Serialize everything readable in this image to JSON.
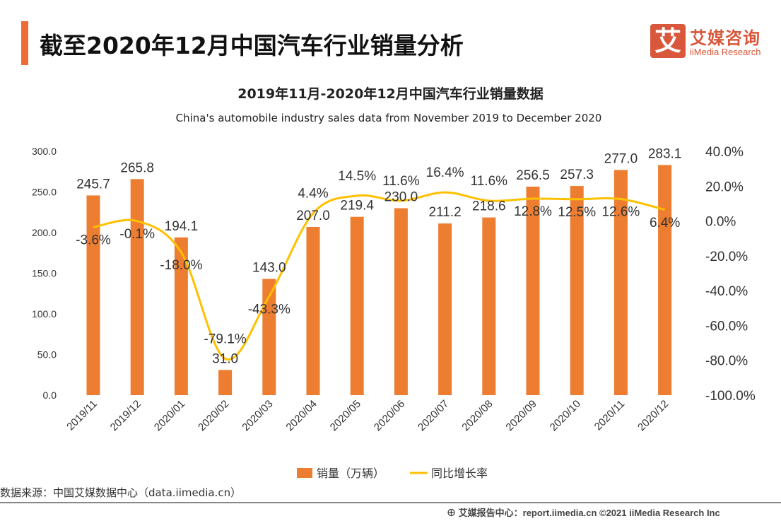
{
  "header": {
    "title": "截至2020年12月中国汽车行业销量分析",
    "logo_cn": "艾媒咨询",
    "logo_en": "iiMedia Research",
    "logo_mark": "艾"
  },
  "chart_data": {
    "type": "bar+line",
    "title": "2019年11月-2020年12月中国汽车行业销量数据",
    "subtitle": "China's automobile industry sales data from November 2019 to December 2020",
    "categories": [
      "2019/11",
      "2019/12",
      "2020/01",
      "2020/02",
      "2020/03",
      "2020/04",
      "2020/05",
      "2020/06",
      "2020/07",
      "2020/08",
      "2020/09",
      "2020/10",
      "2020/11",
      "2020/12"
    ],
    "series": [
      {
        "name": "销量（万辆）",
        "type": "bar",
        "axis": "left",
        "color": "#ed7d31",
        "values": [
          245.7,
          265.8,
          194.1,
          31.0,
          143.0,
          207.0,
          219.4,
          230.0,
          211.2,
          218.6,
          256.5,
          257.3,
          277.0,
          283.1
        ]
      },
      {
        "name": "同比增长率",
        "type": "line",
        "axis": "right",
        "color": "#ffc000",
        "values": [
          -3.6,
          -0.1,
          -18.0,
          -79.1,
          -43.3,
          4.4,
          14.5,
          11.6,
          16.4,
          11.6,
          12.8,
          12.5,
          12.6,
          6.4
        ]
      }
    ],
    "left_axis": {
      "min": 0,
      "max": 300,
      "ticks": [
        "0.0",
        "50.0",
        "100.0",
        "150.0",
        "200.0",
        "250.0",
        "300.0"
      ]
    },
    "right_axis": {
      "min": -100,
      "max": 40,
      "ticks": [
        "-100.0%",
        "-80.0%",
        "-60.0%",
        "-40.0%",
        "-20.0%",
        "0.0%",
        "20.0%",
        "40.0%"
      ]
    },
    "legend": "bottom",
    "grid": false
  },
  "source": "数据来源：中国艾媒数据中心（data.iimedia.cn）",
  "footer": "艾媒报告中心：report.iimedia.cn   ©2021  iiMedia Research  Inc"
}
